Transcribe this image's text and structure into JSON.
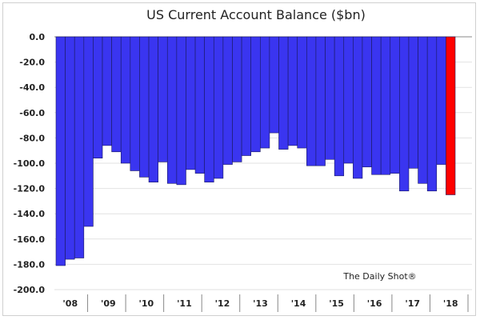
{
  "chart_data": {
    "type": "bar",
    "title": "US Current Account Balance ($bn)",
    "xlabel": "",
    "ylabel": "",
    "ylim": [
      -200,
      0
    ],
    "yticks": [
      "0.0",
      "-20.0",
      "-40.0",
      "-60.0",
      "-80.0",
      "-100.0",
      "-120.0",
      "-140.0",
      "-160.0",
      "-180.0",
      "-200.0"
    ],
    "x_tick_labels": [
      "'08",
      "'09",
      "'10",
      "'11",
      "'12",
      "'13",
      "'14",
      "'15",
      "'16",
      "'17",
      "'18"
    ],
    "grid": true,
    "values": [
      -181,
      -176,
      -175,
      -150,
      -96,
      -86,
      -91,
      -100,
      -106,
      -111,
      -115,
      -99,
      -116,
      -117,
      -105,
      -108,
      -115,
      -112,
      -101,
      -99,
      -94,
      -91,
      -88,
      -76,
      -89,
      -86,
      -88,
      -102,
      -102,
      -97,
      -110,
      -100,
      -112,
      -103,
      -109,
      -109,
      -108,
      -122,
      -104,
      -116,
      -122,
      -101,
      -125
    ],
    "bar_color": "#3a35f0",
    "highlight_color": "#ff0000",
    "highlight_last": true,
    "watermark": "The Daily Shot®"
  }
}
